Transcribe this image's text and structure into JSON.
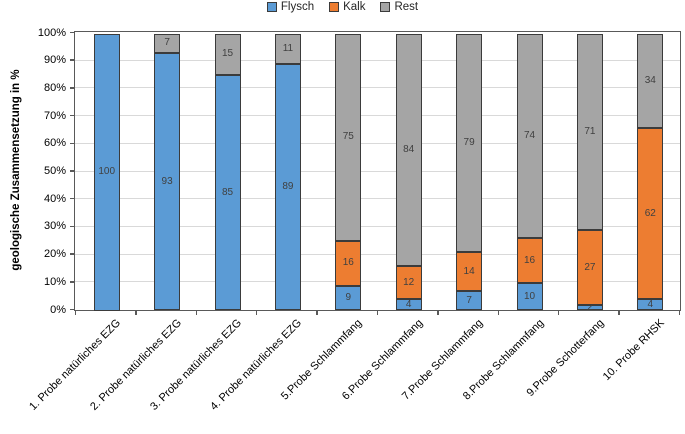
{
  "chart_data": {
    "type": "bar",
    "stacked": true,
    "orientation": "vertical",
    "ylabel": "geologische Zusammensetzung in %",
    "xlabel": "",
    "ylim": [
      0,
      100
    ],
    "ytick_step": 10,
    "ytick_suffix": "%",
    "grid": true,
    "legend_position": "top-center",
    "data_labels": true,
    "categories": [
      "1. Probe natürliches EZG",
      "2. Probe natürliches EZG",
      "3. Probe natürliches EZG",
      "4. Probe natürliches EZG",
      "5.Probe Schlammfang",
      "6.Probe Schlammfang",
      "7.Probe Schlammfang",
      "8.Probe Schlammfang",
      "9.Probe Schotterfang",
      "10. Probe RHSK"
    ],
    "series": [
      {
        "name": "Flysch",
        "color": "#5B9BD5",
        "values": [
          100,
          93,
          85,
          89,
          9,
          4,
          7,
          10,
          2,
          4
        ]
      },
      {
        "name": "Kalk",
        "color": "#ED7D31",
        "values": [
          0,
          0,
          0,
          0,
          16,
          12,
          14,
          16,
          27,
          62
        ]
      },
      {
        "name": "Rest",
        "color": "#A5A5A5",
        "values": [
          0,
          7,
          15,
          11,
          75,
          84,
          79,
          74,
          71,
          34
        ]
      }
    ],
    "colors": {
      "axis": "#595959",
      "grid": "#D9D9D9",
      "bar_border": "#3B3B3B",
      "value_label_text": "#404040",
      "tick_label_text": "#000000"
    }
  }
}
